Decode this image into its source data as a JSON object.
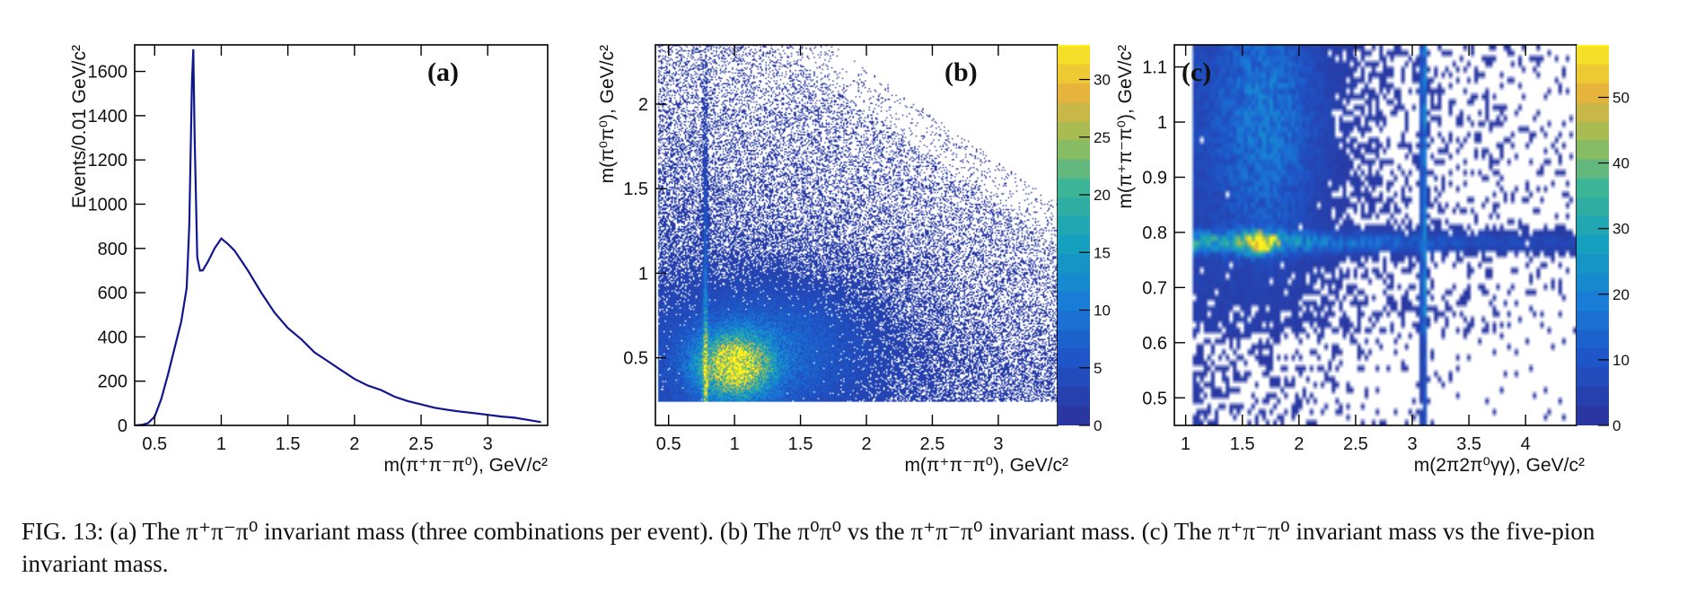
{
  "caption": {
    "text": "FIG. 13: (a) The π⁺π⁻π⁰ invariant mass (three combinations per event). (b) The π⁰π⁰ vs the π⁺π⁻π⁰ invariant mass. (c) The π⁺π⁻π⁰ invariant mass vs the five-pion invariant mass."
  },
  "chart_data": [
    {
      "type": "histogram",
      "panel_label": "(a)",
      "xlabel": "m(π⁺π⁻π⁰), GeV/c²",
      "ylabel": "Events/0.01 GeV/c²",
      "xlim": [
        0.35,
        3.45
      ],
      "ylim": [
        0,
        1720
      ],
      "x_ticks": [
        0.5,
        1,
        1.5,
        2,
        2.5,
        3
      ],
      "y_ticks": [
        0,
        200,
        400,
        600,
        800,
        1000,
        1200,
        1400,
        1600
      ],
      "line_color": "#101590",
      "x": [
        0.35,
        0.4,
        0.45,
        0.5,
        0.55,
        0.6,
        0.65,
        0.7,
        0.74,
        0.76,
        0.78,
        0.79,
        0.8,
        0.82,
        0.84,
        0.86,
        0.9,
        0.95,
        1.0,
        1.05,
        1.1,
        1.2,
        1.3,
        1.4,
        1.5,
        1.6,
        1.7,
        1.8,
        1.9,
        2.0,
        2.1,
        2.2,
        2.3,
        2.4,
        2.5,
        2.6,
        2.7,
        2.8,
        2.9,
        3.0,
        3.1,
        3.2,
        3.3,
        3.4
      ],
      "values": [
        0,
        2,
        10,
        40,
        120,
        230,
        350,
        470,
        620,
        900,
        1550,
        1700,
        1300,
        760,
        700,
        700,
        740,
        800,
        845,
        820,
        790,
        700,
        600,
        510,
        440,
        390,
        330,
        290,
        250,
        210,
        180,
        160,
        130,
        110,
        95,
        80,
        70,
        62,
        55,
        48,
        40,
        35,
        25,
        15
      ]
    },
    {
      "type": "heatmap",
      "panel_label": "(b)",
      "xlabel": "m(π⁺π⁻π⁰), GeV/c²",
      "ylabel": "m(π⁰π⁰), GeV/c²",
      "xlim": [
        0.4,
        3.45
      ],
      "ylim": [
        0.1,
        2.35
      ],
      "x_ticks": [
        0.5,
        1,
        1.5,
        2,
        2.5,
        3
      ],
      "y_ticks": [
        0.5,
        1,
        1.5,
        2
      ],
      "colorbar": {
        "range": [
          0,
          33
        ],
        "ticks": [
          0,
          5,
          10,
          15,
          20,
          25,
          30
        ]
      },
      "features": [
        {
          "name": "omega band",
          "x": 0.78,
          "y_range": [
            0.2,
            1.9
          ]
        },
        {
          "name": "maximum density",
          "x": 1.0,
          "y": 0.45
        }
      ]
    },
    {
      "type": "heatmap",
      "panel_label": "(c)",
      "xlabel": "m(2π2π⁰γγ), GeV/c²",
      "ylabel": "m(π⁺π⁻π⁰), GeV/c²",
      "xlim": [
        0.9,
        4.45
      ],
      "ylim": [
        0.45,
        1.14
      ],
      "x_ticks": [
        1,
        1.5,
        2,
        2.5,
        3,
        3.5,
        4
      ],
      "y_ticks": [
        0.5,
        0.6,
        0.7,
        0.8,
        0.9,
        1,
        1.1
      ],
      "colorbar": {
        "range": [
          0,
          58
        ],
        "ticks": [
          0,
          10,
          20,
          30,
          40,
          50
        ]
      },
      "features": [
        {
          "name": "omega band",
          "y": 0.782
        },
        {
          "name": "J/psi band",
          "x": 3.1
        },
        {
          "name": "maximum density",
          "x": 1.65,
          "y": 0.782
        }
      ]
    }
  ]
}
